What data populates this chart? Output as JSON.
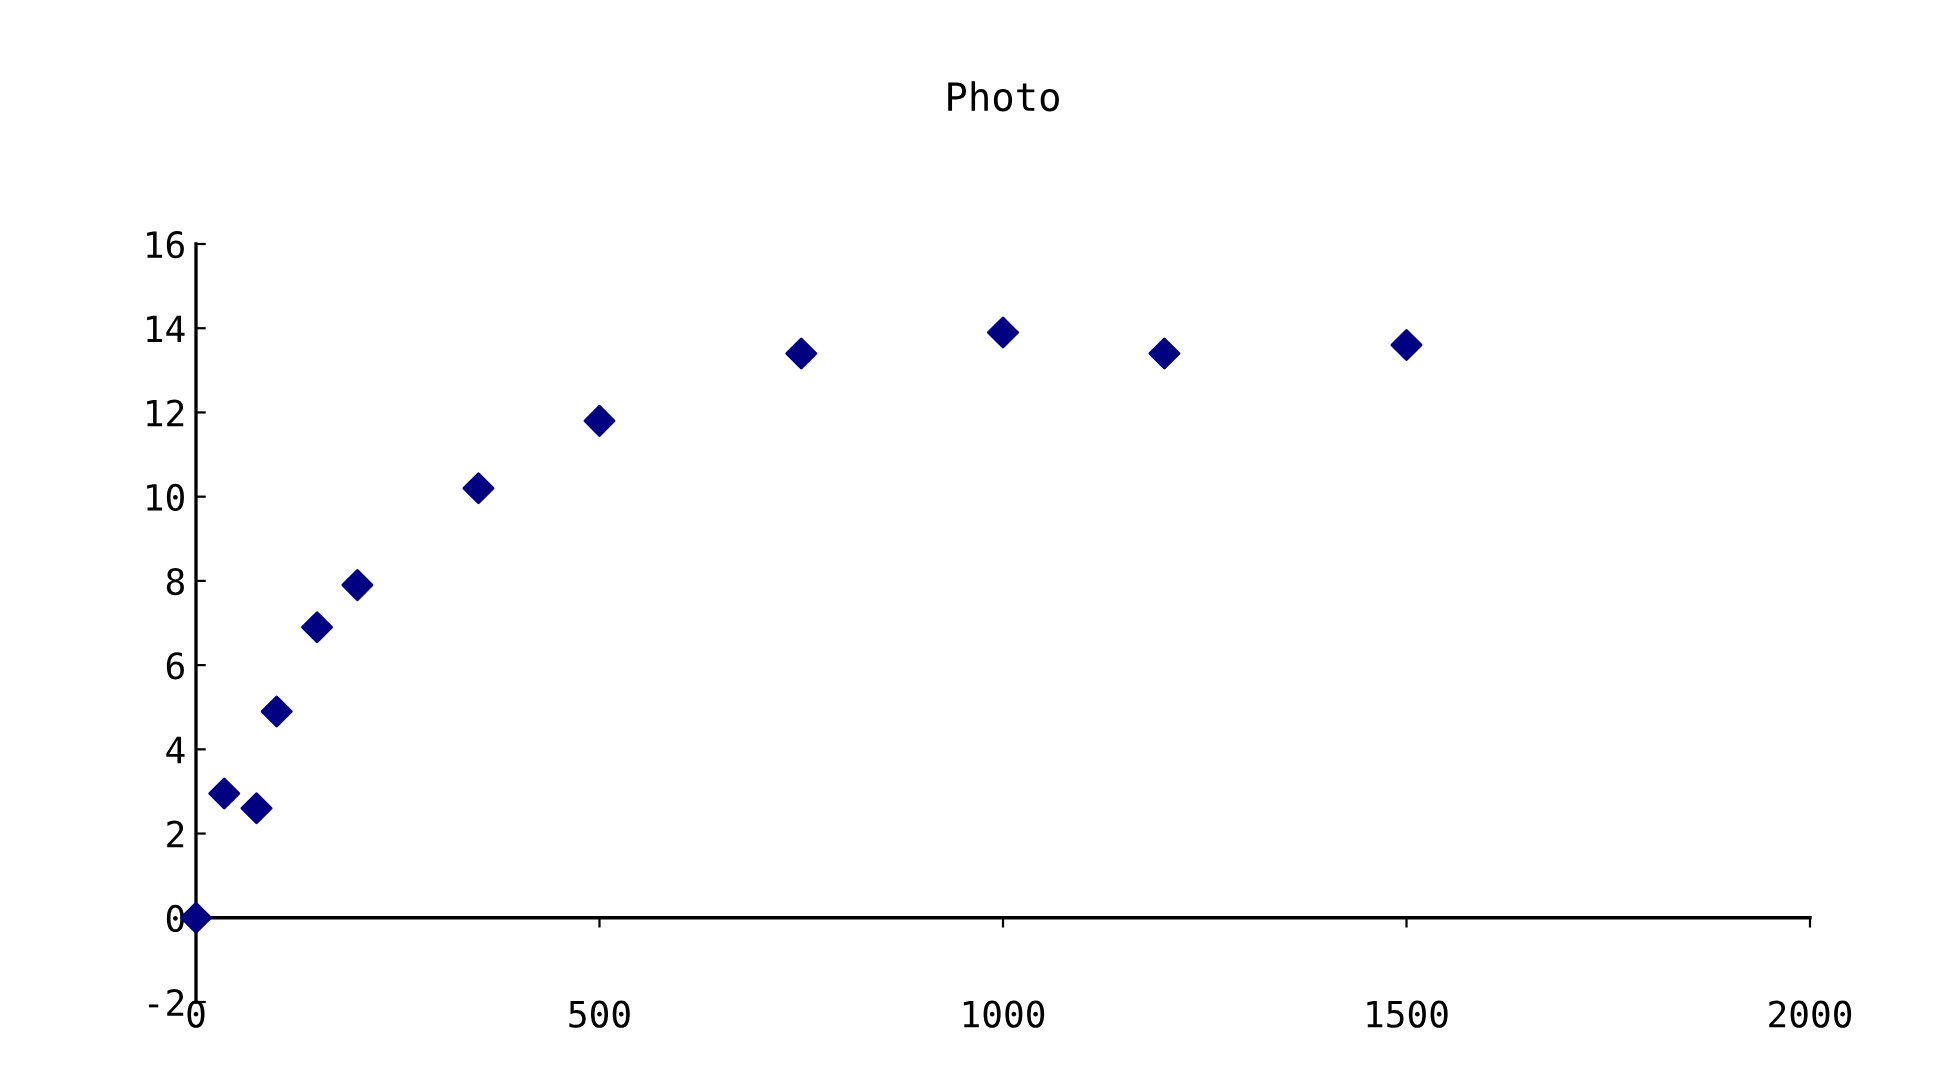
{
  "chart_data": {
    "type": "scatter",
    "title": "Photo",
    "x": [
      0,
      35,
      75,
      100,
      150,
      200,
      350,
      500,
      750,
      1000,
      1200,
      1500
    ],
    "values": [
      0,
      2.95,
      2.6,
      4.9,
      6.9,
      7.9,
      10.2,
      11.8,
      13.4,
      13.9,
      13.4,
      13.6
    ],
    "color": "#000080",
    "marker": "diamond",
    "xlim": [
      0,
      2000
    ],
    "xticks": [
      0,
      500,
      1000,
      1500,
      2000
    ],
    "ylim": [
      -2,
      16
    ],
    "yticks": [
      -2,
      0,
      2,
      4,
      6,
      8,
      10,
      12,
      14,
      16
    ],
    "grid": false,
    "legend": false
  }
}
